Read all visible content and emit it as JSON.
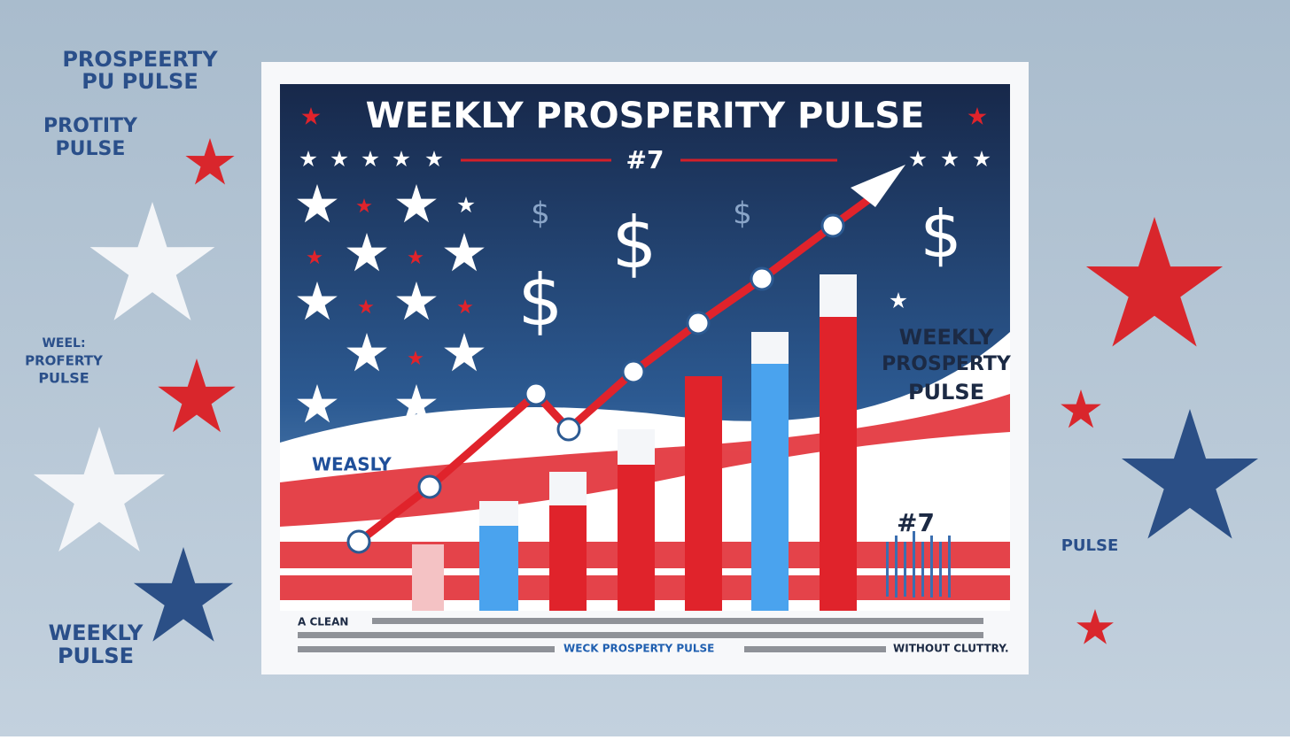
{
  "side_labels": {
    "top_line1": "PROSPEERTY",
    "top_line2": "PU PULSE",
    "second_line1": "PROTITY",
    "second_line2": "PULSE",
    "mid_line1": "WEEL:",
    "mid_line2": "PROFERTY",
    "mid_line3": "PULSE",
    "bottom_line1": "WEEKLY",
    "bottom_line2": "PULSE",
    "right": "PULSE"
  },
  "poster": {
    "title": "WEEKLY PROSPERITY PULSE",
    "issue": "#7",
    "dollar": "$",
    "banner_left": "WEASLY",
    "banner_right_line1": "WEEKLY",
    "banner_right_line2": "PROSPERTY",
    "banner_right_line3": "PULSE",
    "issue_small": "#7",
    "caption_start": "A CLEAN",
    "caption_highlight": "WECK PROSPERTY PULSE",
    "caption_end": "WITHOUT CLUTTRY."
  }
}
